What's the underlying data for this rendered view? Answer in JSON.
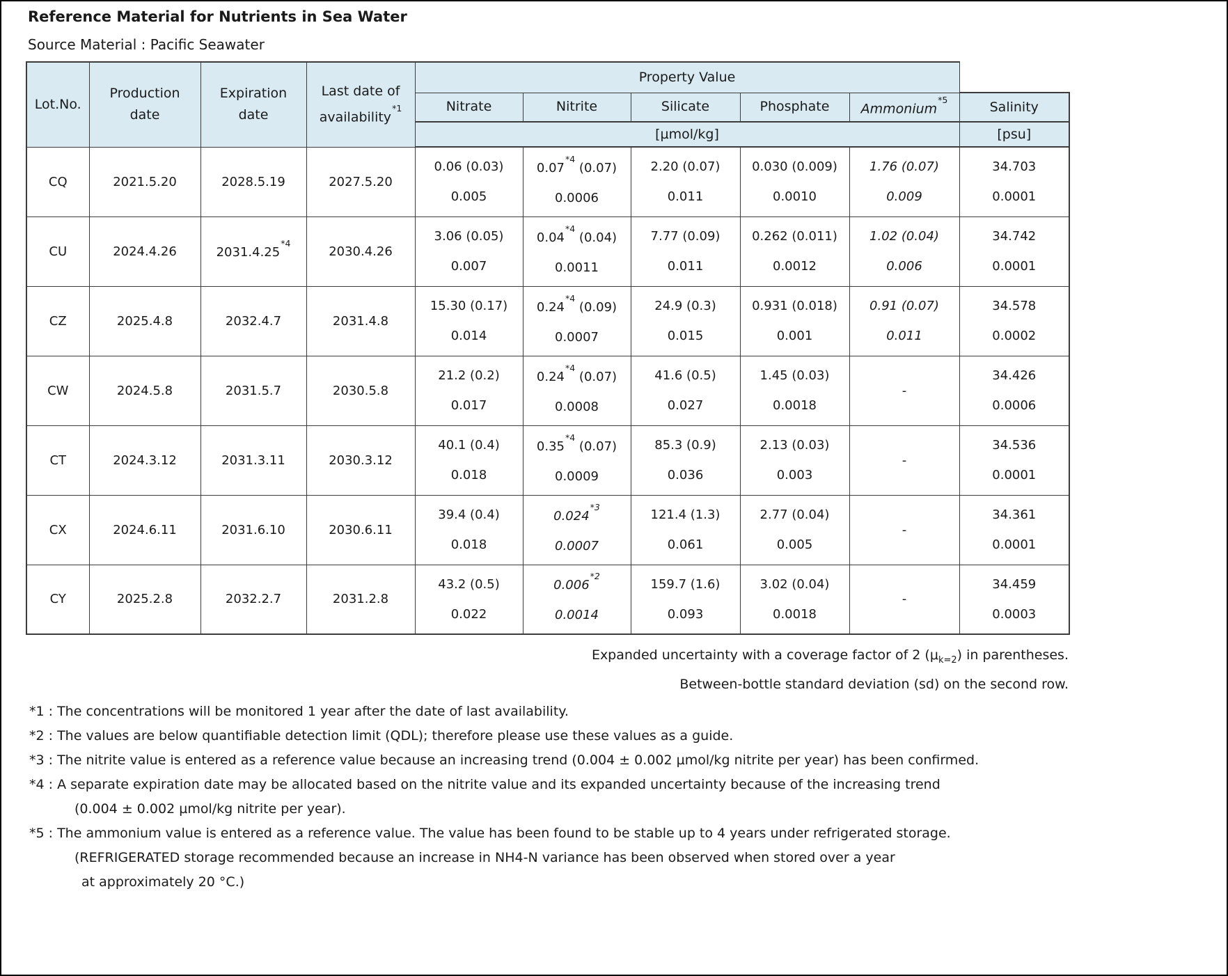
{
  "page": {
    "title": "Reference Material for Nutrients in Sea Water",
    "source_material": "Source Material : Pacific Seawater"
  },
  "colors": {
    "header_fill": "#d9eaf2",
    "border": "#3c3c3c"
  },
  "table": {
    "header": {
      "lot_no": "Lot.No.",
      "production_date": "Production\ndate",
      "expiration_date": "Expiration\ndate",
      "last_date_line1": "Last date of",
      "last_date_line2": "availability",
      "last_date_sup": "*1",
      "property_value": "Property Value",
      "nitrate": "Nitrate",
      "nitrite": "Nitrite",
      "silicate": "Silicate",
      "phosphate": "Phosphate",
      "ammonium": "Ammonium",
      "ammonium_sup": "*5",
      "salinity": "Salinity",
      "unit_nutrients": "[µmol/kg]",
      "unit_salinity": "[psu]"
    },
    "rows": [
      {
        "lot": "CQ",
        "production": "2021.5.20",
        "expiration": "2028.5.19",
        "expiration_sup": "",
        "last_date": "2027.5.20",
        "nitrate": {
          "value": "0.06 (0.03)",
          "sd": "0.005"
        },
        "nitrite": {
          "value": "0.07",
          "sup": "*4",
          "post": " (0.07)",
          "sd": "0.0006",
          "italic": false
        },
        "silicate": {
          "value": "2.20 (0.07)",
          "sd": "0.011"
        },
        "phosphate": {
          "value": "0.030 (0.009)",
          "sd": "0.0010"
        },
        "ammonium": {
          "value": "1.76 (0.07)",
          "sd": "0.009",
          "italic": true
        },
        "salinity": {
          "value": "34.703",
          "sd": "0.0001"
        }
      },
      {
        "lot": "CU",
        "production": "2024.4.26",
        "expiration": "2031.4.25",
        "expiration_sup": "*4",
        "last_date": "2030.4.26",
        "nitrate": {
          "value": "3.06 (0.05)",
          "sd": "0.007"
        },
        "nitrite": {
          "value": "0.04",
          "sup": "*4",
          "post": " (0.04)",
          "sd": "0.0011",
          "italic": false
        },
        "silicate": {
          "value": "7.77 (0.09)",
          "sd": "0.011"
        },
        "phosphate": {
          "value": "0.262 (0.011)",
          "sd": "0.0012"
        },
        "ammonium": {
          "value": "1.02 (0.04)",
          "sd": "0.006",
          "italic": true
        },
        "salinity": {
          "value": "34.742",
          "sd": "0.0001"
        }
      },
      {
        "lot": "CZ",
        "production": "2025.4.8",
        "expiration": "2032.4.7",
        "expiration_sup": "",
        "last_date": "2031.4.8",
        "nitrate": {
          "value": "15.30 (0.17)",
          "sd": "0.014"
        },
        "nitrite": {
          "value": "0.24",
          "sup": "*4",
          "post": " (0.09)",
          "sd": "0.0007",
          "italic": false
        },
        "silicate": {
          "value": "24.9 (0.3)",
          "sd": "0.015"
        },
        "phosphate": {
          "value": "0.931 (0.018)",
          "sd": "0.001"
        },
        "ammonium": {
          "value": "0.91 (0.07)",
          "sd": "0.011",
          "italic": true
        },
        "salinity": {
          "value": "34.578",
          "sd": "0.0002"
        }
      },
      {
        "lot": "CW",
        "production": "2024.5.8",
        "expiration": "2031.5.7",
        "expiration_sup": "",
        "last_date": "2030.5.8",
        "nitrate": {
          "value": "21.2 (0.2)",
          "sd": "0.017"
        },
        "nitrite": {
          "value": "0.24",
          "sup": "*4",
          "post": " (0.07)",
          "sd": "0.0008",
          "italic": false
        },
        "silicate": {
          "value": "41.6 (0.5)",
          "sd": "0.027"
        },
        "phosphate": {
          "value": "1.45 (0.03)",
          "sd": "0.0018"
        },
        "ammonium": {
          "value": "-",
          "sd": "",
          "italic": false
        },
        "salinity": {
          "value": "34.426",
          "sd": "0.0006"
        }
      },
      {
        "lot": "CT",
        "production": "2024.3.12",
        "expiration": "2031.3.11",
        "expiration_sup": "",
        "last_date": "2030.3.12",
        "nitrate": {
          "value": "40.1 (0.4)",
          "sd": "0.018"
        },
        "nitrite": {
          "value": "0.35",
          "sup": "*4",
          "post": " (0.07)",
          "sd": "0.0009",
          "italic": false
        },
        "silicate": {
          "value": "85.3 (0.9)",
          "sd": "0.036"
        },
        "phosphate": {
          "value": "2.13 (0.03)",
          "sd": "0.003"
        },
        "ammonium": {
          "value": "-",
          "sd": "",
          "italic": false
        },
        "salinity": {
          "value": "34.536",
          "sd": "0.0001"
        }
      },
      {
        "lot": "CX",
        "production": "2024.6.11",
        "expiration": "2031.6.10",
        "expiration_sup": "",
        "last_date": "2030.6.11",
        "nitrate": {
          "value": "39.4 (0.4)",
          "sd": "0.018"
        },
        "nitrite": {
          "value": "0.024",
          "sup": "*3",
          "post": "",
          "sd": "0.0007",
          "italic": true
        },
        "silicate": {
          "value": "121.4 (1.3)",
          "sd": "0.061"
        },
        "phosphate": {
          "value": "2.77 (0.04)",
          "sd": "0.005"
        },
        "ammonium": {
          "value": "-",
          "sd": "",
          "italic": false
        },
        "salinity": {
          "value": "34.361",
          "sd": "0.0001"
        }
      },
      {
        "lot": "CY",
        "production": "2025.2.8",
        "expiration": "2032.2.7",
        "expiration_sup": "",
        "last_date": "2031.2.8",
        "nitrate": {
          "value": "43.2 (0.5)",
          "sd": "0.022"
        },
        "nitrite": {
          "value": "0.006",
          "sup": "*2",
          "post": "",
          "sd": "0.0014",
          "italic": true
        },
        "silicate": {
          "value": "159.7 (1.6)",
          "sd": "0.093"
        },
        "phosphate": {
          "value": "3.02 (0.04)",
          "sd": "0.0018"
        },
        "ammonium": {
          "value": "-",
          "sd": "",
          "italic": false
        },
        "salinity": {
          "value": "34.459",
          "sd": "0.0003"
        }
      }
    ]
  },
  "notes": {
    "note1_pre": "Expanded uncertainty with a coverage factor of 2 (μ",
    "note1_sub": "k=2",
    "note1_post": ") in parentheses.",
    "note2": "Between-bottle standard deviation (sd) on the second row."
  },
  "footnotes": {
    "f1": "*1 : The concentrations will be monitored 1 year after the date of last availability.",
    "f2": "*2 : The values are below quantifiable detection limit (QDL); therefore please use these values as a guide.",
    "f3": "*3 : The nitrite value is entered as a reference value because an increasing trend (0.004 ± 0.002 µmol/kg nitrite per year) has been confirmed.",
    "f4_line1": "*4 : A separate expiration date may be allocated based on the nitrite value and its expanded uncertainty because of the increasing trend",
    "f4_line2": "(0.004 ± 0.002 µmol/kg nitrite per year).",
    "f5_line1": "*5 : The ammonium value is entered as a reference value. The value has been found to be stable up to 4 years under refrigerated storage.",
    "f5_line2": "(REFRIGERATED storage recommended because an increase in NH4-N variance has been observed when stored over a year",
    "f5_line3": "at approximately 20 °C.)"
  }
}
